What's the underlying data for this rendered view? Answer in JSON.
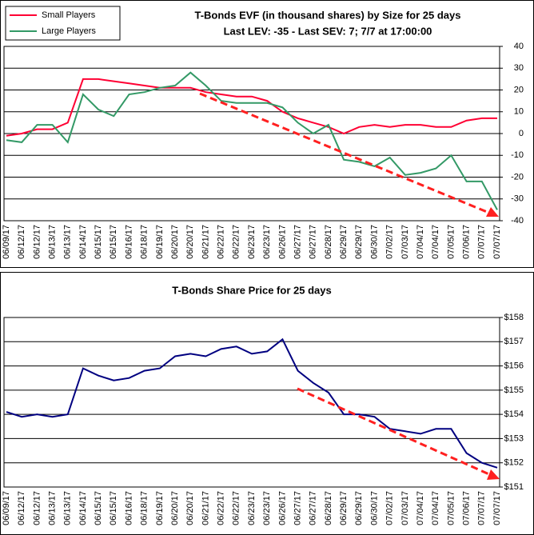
{
  "chart_data": [
    {
      "type": "line",
      "title": "T-Bonds EVF (in thousand shares) by Size for 25 days",
      "subtitle": "Last LEV: -35 - Last SEV: 7; 7/7 at 17:00:00",
      "categories": [
        "06/09/17",
        "06/12/17",
        "06/12/17",
        "06/13/17",
        "06/13/17",
        "06/14/17",
        "06/15/17",
        "06/15/17",
        "06/16/17",
        "06/18/17",
        "06/19/17",
        "06/20/17",
        "06/20/17",
        "06/21/17",
        "06/22/17",
        "06/22/17",
        "06/23/17",
        "06/23/17",
        "06/26/17",
        "06/27/17",
        "06/27/17",
        "06/28/17",
        "06/29/17",
        "06/29/17",
        "06/30/17",
        "07/02/17",
        "07/03/17",
        "07/04/17",
        "07/04/17",
        "07/05/17",
        "07/06/17",
        "07/07/17",
        "07/07/17"
      ],
      "series": [
        {
          "name": "Small Players",
          "color": "#ff0033",
          "values": [
            -1,
            0,
            2,
            2,
            5,
            25,
            25,
            24,
            23,
            22,
            21,
            21,
            21,
            19,
            18,
            17,
            17,
            15,
            10,
            7,
            5,
            3,
            0,
            3,
            4,
            3,
            4,
            4,
            3,
            3,
            6,
            7,
            7
          ]
        },
        {
          "name": "Large Players",
          "color": "#339966",
          "values": [
            -3,
            -4,
            4,
            4,
            -4,
            18,
            11,
            8,
            18,
            19,
            21,
            22,
            28,
            22,
            15,
            14,
            14,
            14,
            12,
            5,
            0,
            4,
            -12,
            -13,
            -15,
            -11,
            -19,
            -18,
            -16,
            -10,
            -22,
            -22,
            -35
          ]
        }
      ],
      "ylim": [
        -40,
        40
      ],
      "yticks": [
        -40,
        -30,
        -20,
        -10,
        0,
        10,
        20,
        30,
        40
      ],
      "grid": true,
      "legend": "upper left"
    },
    {
      "type": "line",
      "title": "T-Bonds Share Price for 25 days",
      "categories": [
        "06/09/17",
        "06/12/17",
        "06/12/17",
        "06/13/17",
        "06/13/17",
        "06/14/17",
        "06/15/17",
        "06/15/17",
        "06/16/17",
        "06/18/17",
        "06/19/17",
        "06/20/17",
        "06/20/17",
        "06/21/17",
        "06/22/17",
        "06/22/17",
        "06/23/17",
        "06/23/17",
        "06/26/17",
        "06/27/17",
        "06/27/17",
        "06/28/17",
        "06/29/17",
        "06/29/17",
        "06/30/17",
        "07/02/17",
        "07/03/17",
        "07/04/17",
        "07/04/17",
        "07/05/17",
        "07/06/17",
        "07/07/17",
        "07/07/17"
      ],
      "series": [
        {
          "color": "#000080",
          "values": [
            154.1,
            153.9,
            154,
            153.9,
            154,
            155.9,
            155.6,
            155.4,
            155.5,
            155.8,
            155.9,
            156.4,
            156.5,
            156.4,
            156.7,
            156.8,
            156.5,
            156.6,
            157.1,
            155.8,
            155.3,
            154.9,
            154,
            154,
            153.9,
            153.4,
            153.3,
            153.2,
            153.4,
            153.4,
            152.4,
            152,
            151.8
          ]
        }
      ],
      "ylim": [
        151,
        158
      ],
      "yticks": [
        {
          "value": 151,
          "label": "$151"
        },
        {
          "value": 152,
          "label": "$152"
        },
        {
          "value": 153,
          "label": "$153"
        },
        {
          "value": 154,
          "label": "$154"
        },
        {
          "value": 155,
          "label": "$155"
        },
        {
          "value": 156,
          "label": "$156"
        },
        {
          "value": 157,
          "label": "$157"
        },
        {
          "value": 158,
          "label": "$158"
        }
      ],
      "grid": true
    }
  ]
}
